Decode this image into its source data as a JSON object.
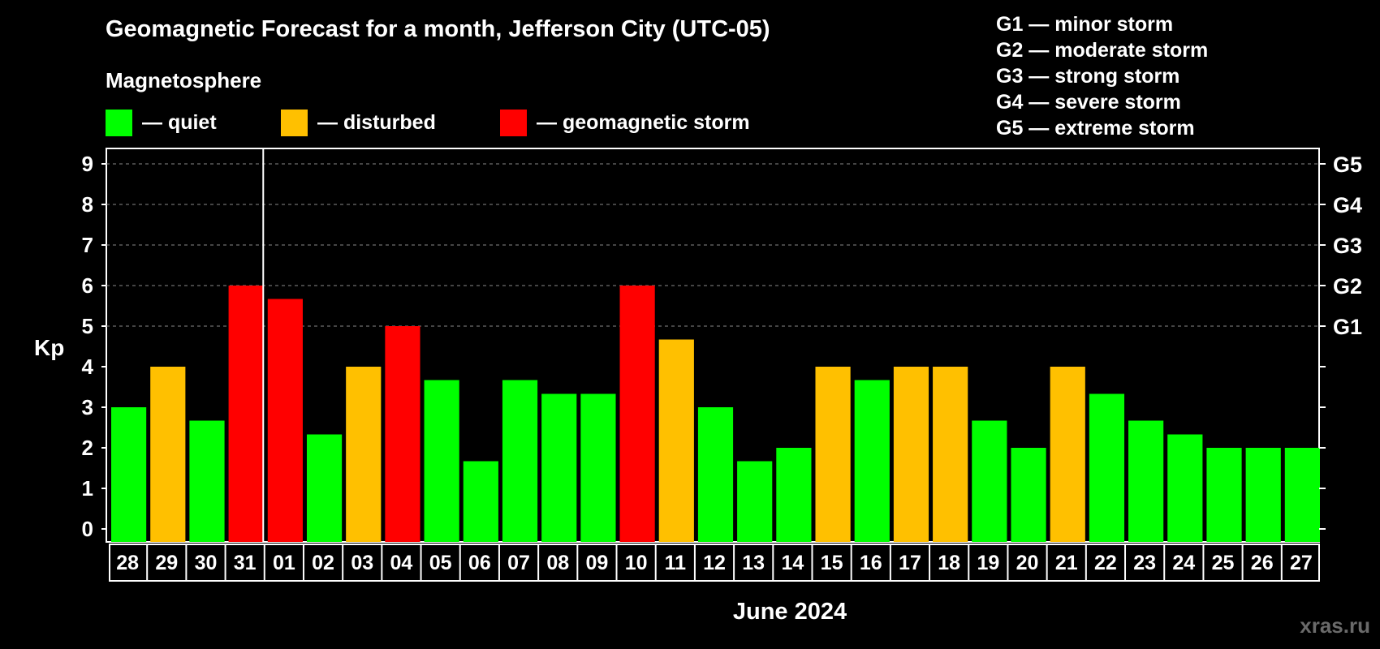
{
  "header": {
    "title": "Geomagnetic Forecast for a month, Jefferson City (UTC-05)",
    "subtitle": "Magnetosphere"
  },
  "legend": [
    {
      "label": "— quiet",
      "color": "#00ff00"
    },
    {
      "label": "— disturbed",
      "color": "#ffc000"
    },
    {
      "label": "— geomagnetic storm",
      "color": "#ff0000"
    }
  ],
  "g_legend": [
    "G1 — minor storm",
    "G2 — moderate storm",
    "G3 — strong storm",
    "G4 — severe storm",
    "G5 — extreme storm"
  ],
  "watermark": "xras.ru",
  "chart_data": {
    "type": "bar",
    "ylabel": "Kp",
    "xlabel": "June 2024",
    "ylim": [
      0,
      9
    ],
    "yticks": [
      0,
      1,
      2,
      3,
      4,
      5,
      6,
      7,
      8,
      9
    ],
    "right_axis": [
      {
        "value": 5,
        "label": "G1"
      },
      {
        "value": 6,
        "label": "G2"
      },
      {
        "value": 7,
        "label": "G3"
      },
      {
        "value": 8,
        "label": "G4"
      },
      {
        "value": 9,
        "label": "G5"
      }
    ],
    "grid": "dashed horizontal at 5–9",
    "month_boundary_after": "31",
    "categories": [
      "28",
      "29",
      "30",
      "31",
      "01",
      "02",
      "03",
      "04",
      "05",
      "06",
      "07",
      "08",
      "09",
      "10",
      "11",
      "12",
      "13",
      "14",
      "15",
      "16",
      "17",
      "18",
      "19",
      "20",
      "21",
      "22",
      "23",
      "24",
      "25",
      "26",
      "27"
    ],
    "values": [
      3,
      4,
      2.67,
      6,
      5.67,
      2.33,
      4,
      5,
      3.67,
      1.67,
      3.67,
      3.33,
      3.33,
      6,
      4.67,
      3,
      1.67,
      2,
      4,
      3.67,
      4,
      4,
      2.67,
      2,
      4,
      3.33,
      2.67,
      2.33,
      2,
      2,
      2
    ],
    "status": [
      "quiet",
      "disturbed",
      "quiet",
      "storm",
      "storm",
      "quiet",
      "disturbed",
      "storm",
      "quiet",
      "quiet",
      "quiet",
      "quiet",
      "quiet",
      "storm",
      "disturbed",
      "quiet",
      "quiet",
      "quiet",
      "disturbed",
      "quiet",
      "disturbed",
      "disturbed",
      "quiet",
      "quiet",
      "disturbed",
      "quiet",
      "quiet",
      "quiet",
      "quiet",
      "quiet",
      "quiet"
    ],
    "colors": {
      "quiet": "#00ff00",
      "disturbed": "#ffc000",
      "storm": "#ff0000"
    }
  }
}
